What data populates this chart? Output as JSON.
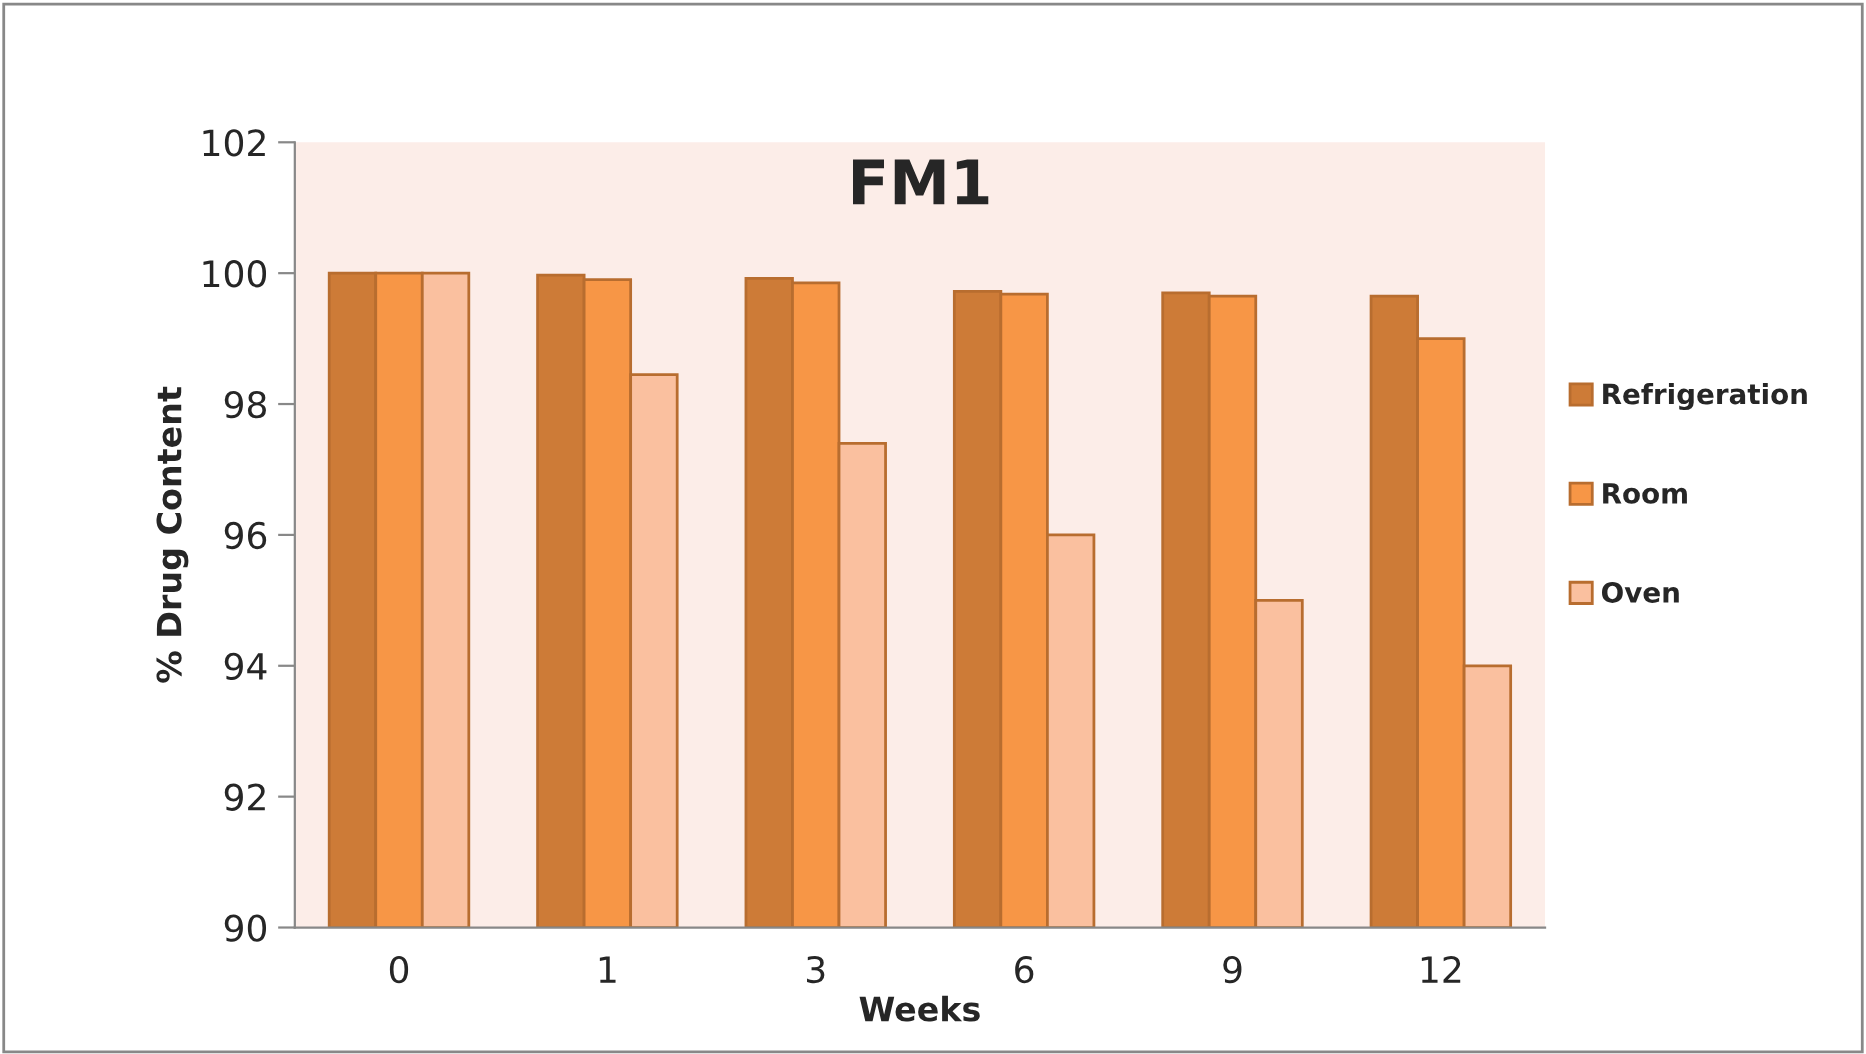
{
  "chart_data": {
    "type": "bar",
    "title": "FM1",
    "xlabel": "Weeks",
    "ylabel": "% Drug Content",
    "categories": [
      "0",
      "1",
      "3",
      "6",
      "9",
      "12"
    ],
    "series": [
      {
        "name": "Refrigeration",
        "color": "#cd7b37",
        "values": [
          100,
          99.97,
          99.92,
          99.72,
          99.7,
          99.65
        ]
      },
      {
        "name": "Room",
        "color": "#f79646",
        "values": [
          100,
          99.9,
          99.85,
          99.68,
          99.65,
          99.0
        ]
      },
      {
        "name": "Oven",
        "color": "#fac09f",
        "values": [
          100,
          98.45,
          97.4,
          96.0,
          95.0,
          94.0
        ]
      }
    ],
    "ylim": [
      90,
      102
    ],
    "yticks": [
      90,
      92,
      94,
      96,
      98,
      100,
      102
    ],
    "grid": false,
    "legend": "right"
  }
}
